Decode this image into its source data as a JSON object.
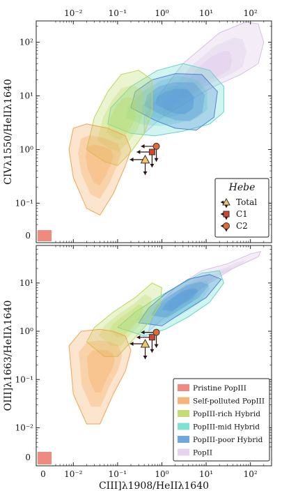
{
  "chart_data": [
    {
      "type": "contour",
      "panel": "top",
      "xlabel": "",
      "top_xlabel": "",
      "ylabel": "CIVλ1550/HeIIλ1640",
      "x_scale": "log",
      "y_scale": "log",
      "xlim": [
        0.004,
        300
      ],
      "ylim": [
        0.04,
        250
      ],
      "top_ticks": [
        {
          "v": 0.01,
          "label": "10⁻²"
        },
        {
          "v": 0.1,
          "label": "10⁻¹"
        },
        {
          "v": 1,
          "label": "10⁰"
        },
        {
          "v": 10,
          "label": "10¹"
        },
        {
          "v": 100,
          "label": "10²"
        }
      ],
      "y_ticks": [
        {
          "v": 0.1,
          "label": "10⁻¹"
        },
        {
          "v": 1,
          "label": "10⁰"
        },
        {
          "v": 10,
          "label": "10¹"
        },
        {
          "v": 100,
          "label": "10²"
        }
      ],
      "zero_label": "0",
      "regions": [
        {
          "name": "PopII",
          "color": "#d9bfe6",
          "points": [
            [
              0.4,
              2
            ],
            [
              1,
              4
            ],
            [
              4,
              8
            ],
            [
              15,
              15
            ],
            [
              60,
              25
            ],
            [
              150,
              40
            ],
            [
              200,
              100
            ],
            [
              150,
              220
            ],
            [
              80,
              240
            ],
            [
              20,
              150
            ],
            [
              3,
              40
            ],
            [
              1,
              12
            ],
            [
              0.4,
              4
            ]
          ]
        },
        {
          "name": "PopIII-mid Hybrid",
          "color": "#5fd6c8",
          "points": [
            [
              0.06,
              3
            ],
            [
              0.2,
              2
            ],
            [
              0.7,
              1.8
            ],
            [
              3,
              2.2
            ],
            [
              12,
              3
            ],
            [
              25,
              5
            ],
            [
              25,
              15
            ],
            [
              12,
              30
            ],
            [
              3,
              40
            ],
            [
              0.8,
              30
            ],
            [
              0.2,
              15
            ],
            [
              0.07,
              6
            ]
          ]
        },
        {
          "name": "PopIII-poor Hybrid",
          "color": "#4a86d6",
          "points": [
            [
              0.2,
              6
            ],
            [
              0.7,
              3.5
            ],
            [
              2,
              2.5
            ],
            [
              6,
              2.3
            ],
            [
              15,
              4
            ],
            [
              18,
              12
            ],
            [
              8,
              25
            ],
            [
              2,
              26
            ],
            [
              0.6,
              20
            ],
            [
              0.25,
              12
            ]
          ]
        },
        {
          "name": "PopIII-rich Hybrid",
          "color": "#b8d957",
          "points": [
            [
              0.02,
              1
            ],
            [
              0.05,
              0.6
            ],
            [
              0.1,
              0.5
            ],
            [
              0.2,
              0.9
            ],
            [
              0.4,
              2
            ],
            [
              0.6,
              5
            ],
            [
              0.6,
              20
            ],
            [
              0.3,
              30
            ],
            [
              0.12,
              25
            ],
            [
              0.06,
              12
            ],
            [
              0.03,
              4
            ]
          ]
        },
        {
          "name": "Self-polluted PopIII",
          "color": "#f5a24e",
          "points": [
            [
              0.008,
              1
            ],
            [
              0.01,
              0.3
            ],
            [
              0.02,
              0.08
            ],
            [
              0.04,
              0.06
            ],
            [
              0.08,
              0.15
            ],
            [
              0.15,
              0.5
            ],
            [
              0.2,
              1
            ],
            [
              0.15,
              1.8
            ],
            [
              0.06,
              2.5
            ],
            [
              0.02,
              3
            ],
            [
              0.01,
              2.5
            ]
          ]
        }
      ],
      "points": [
        {
          "name": "Total",
          "marker": "triangle",
          "x": 0.42,
          "y": 0.65,
          "color": "#f3c46a"
        },
        {
          "name": "C1",
          "marker": "square",
          "x": 0.6,
          "y": 0.9,
          "color": "#d9442a"
        },
        {
          "name": "C2",
          "marker": "circle",
          "x": 0.75,
          "y": 1.15,
          "color": "#e46a2f"
        }
      ],
      "legend": {
        "title": "Hebe",
        "position": "lower-right",
        "entries": [
          {
            "name": "Total",
            "marker": "triangle",
            "color": "#f3c46a"
          },
          {
            "name": "C1",
            "marker": "square",
            "color": "#d9442a"
          },
          {
            "name": "C2",
            "marker": "circle",
            "color": "#e46a2f"
          }
        ]
      },
      "pristine_color": "#ee8a80"
    },
    {
      "type": "contour",
      "panel": "bottom",
      "xlabel": "CIII]λ1908/HeIIλ1640",
      "ylabel": "OIII]λ1663/HeIIλ1640",
      "x_scale": "log",
      "y_scale": "log",
      "xlim": [
        0.004,
        300
      ],
      "ylim": [
        0.004,
        60
      ],
      "x_ticks": [
        {
          "v": 0.01,
          "label": "10⁻²"
        },
        {
          "v": 0.1,
          "label": "10⁻¹"
        },
        {
          "v": 1,
          "label": "10⁰"
        },
        {
          "v": 10,
          "label": "10¹"
        },
        {
          "v": 100,
          "label": "10²"
        }
      ],
      "y_ticks": [
        {
          "v": 0.01,
          "label": "10⁻²"
        },
        {
          "v": 0.1,
          "label": "10⁻¹"
        },
        {
          "v": 1,
          "label": "10⁰"
        },
        {
          "v": 10,
          "label": "10¹"
        }
      ],
      "zero_label": "0",
      "x_zero_label": "0",
      "regions": [
        {
          "name": "PopII",
          "color": "#d9bfe6",
          "points": [
            [
              0.5,
              1
            ],
            [
              2,
              3
            ],
            [
              8,
              8
            ],
            [
              40,
              20
            ],
            [
              150,
              35
            ],
            [
              170,
              45
            ],
            [
              100,
              40
            ],
            [
              30,
              25
            ],
            [
              8,
              18
            ],
            [
              2,
              8
            ],
            [
              0.7,
              3
            ]
          ]
        },
        {
          "name": "PopIII-mid Hybrid",
          "color": "#5fd6c8",
          "points": [
            [
              0.1,
              1.2
            ],
            [
              0.4,
              0.8
            ],
            [
              1.2,
              1.1
            ],
            [
              4,
              2
            ],
            [
              12,
              4
            ],
            [
              25,
              10
            ],
            [
              20,
              18
            ],
            [
              8,
              16
            ],
            [
              3,
              10
            ],
            [
              0.8,
              5
            ],
            [
              0.25,
              2.5
            ]
          ]
        },
        {
          "name": "PopIII-poor Hybrid",
          "color": "#4a86d6",
          "points": [
            [
              0.3,
              1.5
            ],
            [
              1,
              1.3
            ],
            [
              3,
              2.5
            ],
            [
              10,
              5
            ],
            [
              22,
              12
            ],
            [
              12,
              15
            ],
            [
              4,
              12
            ],
            [
              1.2,
              6
            ],
            [
              0.5,
              3
            ]
          ]
        },
        {
          "name": "PopIII-rich Hybrid",
          "color": "#b8d957",
          "points": [
            [
              0.02,
              0.6
            ],
            [
              0.05,
              0.3
            ],
            [
              0.1,
              0.3
            ],
            [
              0.2,
              0.6
            ],
            [
              0.5,
              1.5
            ],
            [
              0.9,
              3.5
            ],
            [
              1,
              8
            ],
            [
              0.6,
              10
            ],
            [
              0.25,
              5
            ],
            [
              0.08,
              2.5
            ],
            [
              0.03,
              1.2
            ]
          ]
        },
        {
          "name": "Self-polluted PopIII",
          "color": "#f5a24e",
          "points": [
            [
              0.008,
              0.5
            ],
            [
              0.01,
              0.05
            ],
            [
              0.02,
              0.012
            ],
            [
              0.04,
              0.012
            ],
            [
              0.08,
              0.05
            ],
            [
              0.15,
              0.15
            ],
            [
              0.2,
              0.4
            ],
            [
              0.15,
              0.8
            ],
            [
              0.08,
              1
            ],
            [
              0.04,
              1.1
            ],
            [
              0.015,
              1
            ]
          ]
        }
      ],
      "points": [
        {
          "name": "Total",
          "marker": "triangle",
          "x": 0.42,
          "y": 0.55,
          "color": "#f3c46a"
        },
        {
          "name": "C1",
          "marker": "square",
          "x": 0.6,
          "y": 0.75,
          "color": "#d9442a"
        },
        {
          "name": "C2",
          "marker": "circle",
          "x": 0.75,
          "y": 0.95,
          "color": "#e46a2f"
        }
      ],
      "legend": {
        "position": "lower-right",
        "entries": [
          {
            "name": "Pristine PopIII",
            "color": "#ee8a80"
          },
          {
            "name": "Self-polluted PopIII",
            "color": "#f5b47a"
          },
          {
            "name": "PopIII-rich Hybrid",
            "color": "#c6dc73"
          },
          {
            "name": "PopIII-mid Hybrid",
            "color": "#7fe0d3"
          },
          {
            "name": "PopIII-poor Hybrid",
            "color": "#6fa8e0"
          },
          {
            "name": "PopII",
            "color": "#e8d3ef"
          }
        ]
      },
      "pristine_color": "#ee8a80"
    }
  ]
}
